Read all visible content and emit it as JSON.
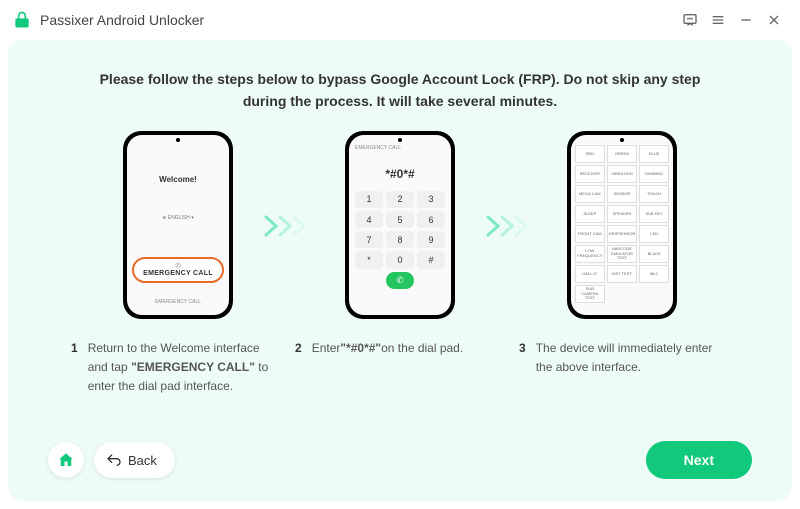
{
  "titlebar": {
    "brand": "Passixer Android Unlocker"
  },
  "headline": "Please follow the steps below to bypass Google Account Lock (FRP). Do not skip any step during the process. It will take several minutes.",
  "phone1": {
    "welcome": "Welcome!",
    "lang": "⊕ ENGLISH ▾",
    "emergency": "EMERGENCY CALL",
    "bottom": "EMERGENCY CALL"
  },
  "phone2": {
    "head": "EMERGENCY CALL",
    "number": "*#0*#",
    "keys": [
      "1",
      "2",
      "3",
      "4",
      "5",
      "6",
      "7",
      "8",
      "9",
      "*",
      "0",
      "#",
      "",
      "✆",
      ""
    ]
  },
  "phone3": {
    "cells": [
      "RED",
      "GREEN",
      "BLUE",
      "RECEIVER",
      "VIBRATION",
      "DIMMING",
      "MEGA CAM",
      "SENSOR",
      "TOUCH",
      "SLEEP",
      "SPEAKER",
      "SUB KEY",
      "FRONT CAM",
      "GRIPSENSOR",
      "LED",
      "LOW FREQUENCY",
      "BARCODE EMULATOR TEST",
      "BLACK",
      "HALL IC",
      "MST TEST",
      "MLC",
      "SUB CAMERA TEST",
      "",
      ""
    ]
  },
  "captions": {
    "c1_num": "1",
    "c1_a": "Return to the Welcome interface and tap ",
    "c1_b": "\"EMERGENCY CALL\"",
    "c1_c": " to enter the dial pad interface.",
    "c2_num": "2",
    "c2_a": "Enter",
    "c2_b": "\"*#0*#\"",
    "c2_c": "on the dial pad.",
    "c3_num": "3",
    "c3": "The device will immediately enter the above interface."
  },
  "footer": {
    "back": "Back",
    "next": "Next"
  },
  "colors": {
    "accent": "#10c97b",
    "panel": "#eefcf7"
  }
}
